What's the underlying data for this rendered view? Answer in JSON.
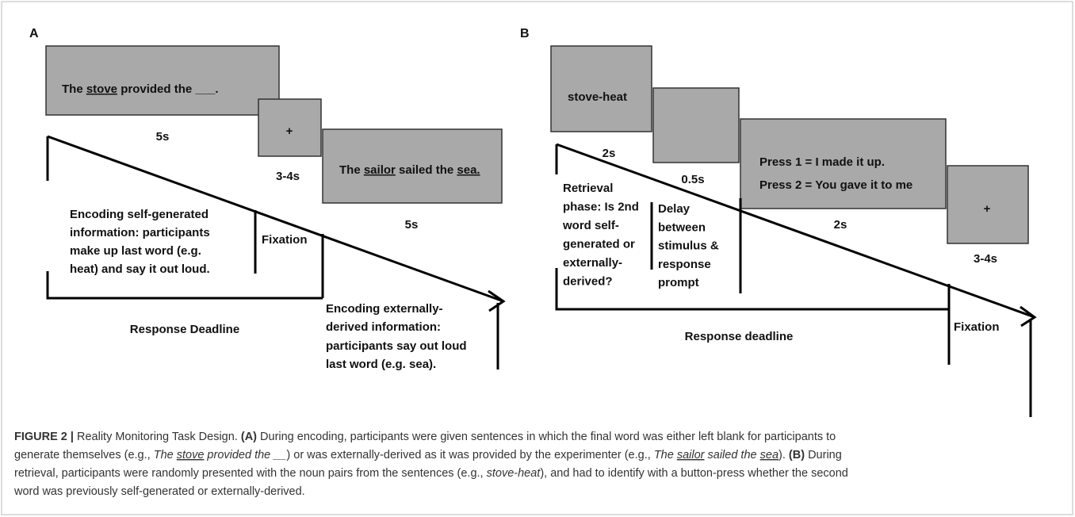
{
  "panels": [
    {
      "label": "A",
      "frames": [
        {
          "runs": [
            "The ",
            "stove",
            " provided the ",
            "___",
            "."
          ],
          "duration": "5s"
        },
        {
          "runs": [
            "+"
          ],
          "duration": "3-4s"
        },
        {
          "runs": [
            "The ",
            "sailor",
            " sailed the ",
            "sea."
          ],
          "duration": "5s"
        }
      ],
      "phases": [
        {
          "lines": [
            "Encoding self-generated",
            "information: participants",
            "make up last word (e.g.",
            "heat) and say it out loud."
          ]
        },
        {
          "lines": [
            "Fixation"
          ]
        },
        {
          "lines": [
            "Encoding externally-",
            "derived information:",
            "participants say out loud",
            "last word (e.g. sea)."
          ]
        }
      ],
      "deadline": "Response Deadline"
    },
    {
      "label": "B",
      "frames": [
        {
          "lines": [
            "stove-heat"
          ],
          "duration": "2s"
        },
        {
          "duration": "0.5s"
        },
        {
          "lines": [
            "Press 1 = I made it up.",
            "Press 2 = You gave it to me"
          ],
          "duration": "2s"
        },
        {
          "lines": [
            "+"
          ],
          "duration": "3-4s"
        }
      ],
      "phases": [
        {
          "lines": [
            "Retrieval",
            "phase: Is 2nd",
            "word self-",
            "generated or",
            "externally-",
            "derived?"
          ]
        },
        {
          "lines": [
            "Delay",
            "between",
            "stimulus &",
            "response",
            "prompt"
          ]
        },
        {
          "lines": [
            "Fixation"
          ]
        }
      ],
      "deadline": "Response deadline"
    }
  ],
  "caption": {
    "lines": [
      [
        "FIGURE 2 |",
        " Reality Monitoring Task Design. ",
        "(A)",
        " During encoding, participants were given sentences in which the final word was either left blank for participants to"
      ],
      [
        "generate themselves (e.g., ",
        "The ",
        "stove",
        " provided the __",
        ") or was externally-derived as it was provided by the experimenter (e.g., ",
        "The ",
        "sailor",
        " sailed the ",
        "sea",
        "). ",
        "(B)",
        " During"
      ],
      [
        "retrieval, participants were randomly presented with the noun pairs from the sentences (e.g., ",
        "stove-heat",
        "), and had to identify with a button-press whether the second"
      ],
      [
        "word was previously self-generated or externally-derived."
      ]
    ]
  }
}
